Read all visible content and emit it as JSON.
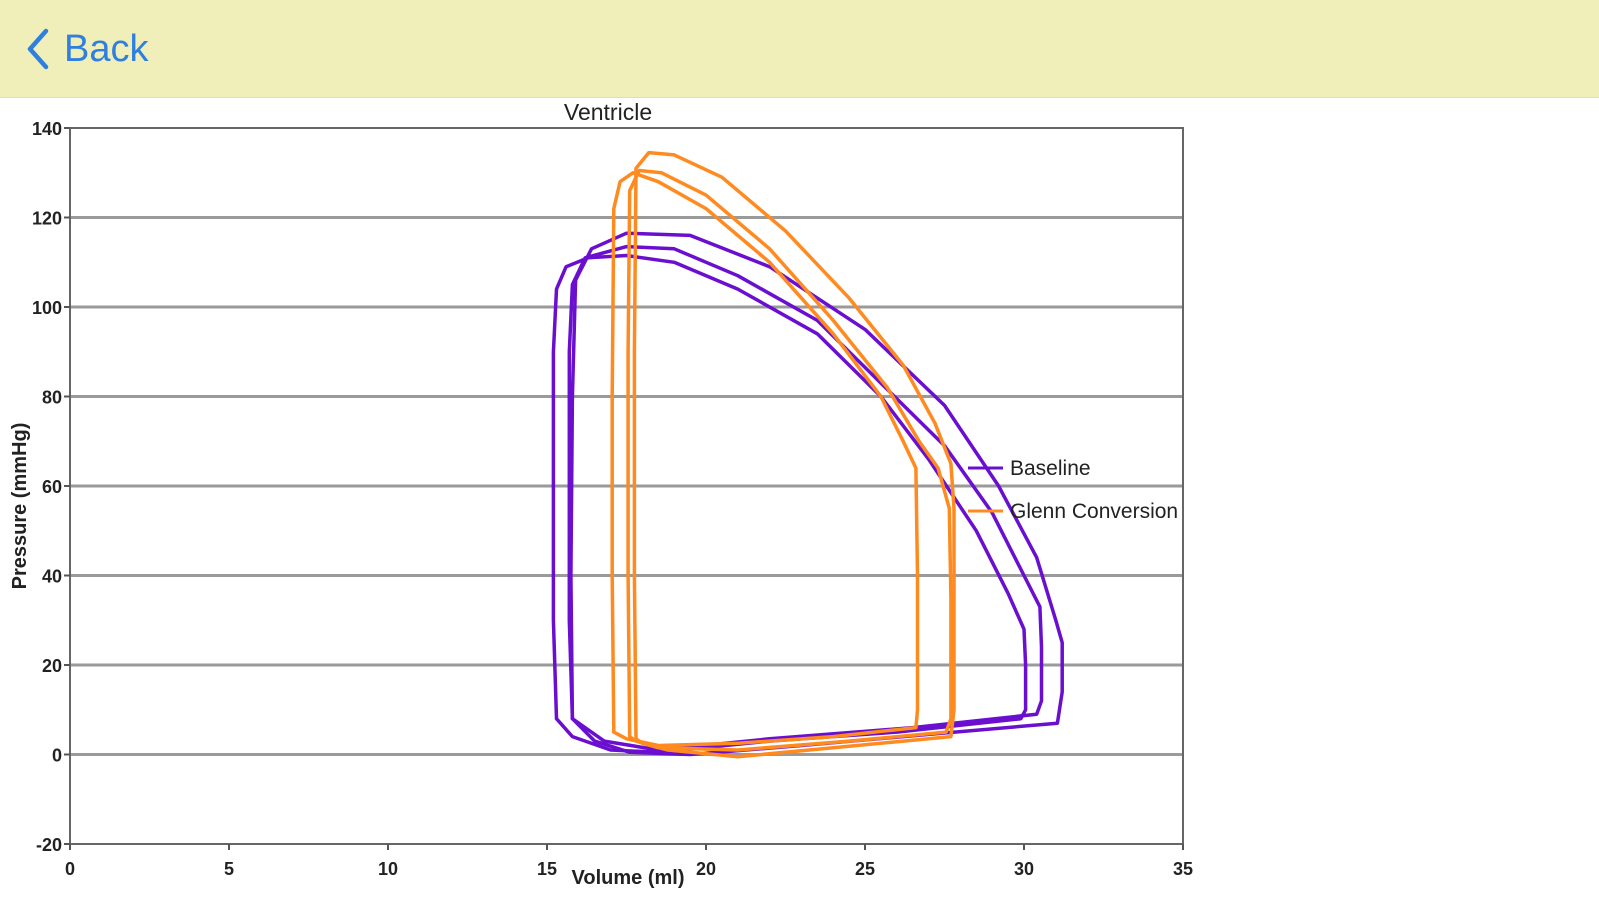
{
  "nav": {
    "back_label": "Back",
    "background": "#f0efb9",
    "accent": "#2f7fe0"
  },
  "chart_data": {
    "type": "line",
    "title": "Ventricle",
    "xlabel": "Volume (ml)",
    "ylabel": "Pressure (mmHg)",
    "xlim": [
      0,
      35
    ],
    "ylim": [
      -20,
      140
    ],
    "x_ticks": [
      "0",
      "5",
      "10",
      "15",
      "20",
      "25",
      "30",
      "35"
    ],
    "y_ticks": [
      "-20",
      "0",
      "20",
      "40",
      "60",
      "80",
      "100",
      "120",
      "140"
    ],
    "grid": "horizontal",
    "legend": "right",
    "series": [
      {
        "name": "Baseline",
        "color": "#6a0fd0",
        "loops": [
          [
            [
              15.3,
              8
            ],
            [
              15.2,
              30
            ],
            [
              15.2,
              60
            ],
            [
              15.2,
              90
            ],
            [
              15.3,
              104
            ],
            [
              15.6,
              109
            ],
            [
              16.3,
              111
            ],
            [
              17.5,
              111.5
            ],
            [
              19,
              110
            ],
            [
              21,
              104
            ],
            [
              23.5,
              94
            ],
            [
              25.5,
              80
            ],
            [
              27,
              66
            ],
            [
              28.5,
              50
            ],
            [
              29.5,
              36
            ],
            [
              30,
              28
            ],
            [
              30.05,
              20
            ],
            [
              30.05,
              10
            ],
            [
              29.9,
              8
            ],
            [
              26,
              5
            ],
            [
              22,
              3
            ],
            [
              18.5,
              0.5
            ],
            [
              17,
              1
            ],
            [
              15.8,
              4
            ],
            [
              15.3,
              8
            ]
          ],
          [
            [
              15.8,
              8
            ],
            [
              15.7,
              30
            ],
            [
              15.7,
              60
            ],
            [
              15.7,
              90
            ],
            [
              15.8,
              105
            ],
            [
              16.2,
              111
            ],
            [
              17.5,
              113.5
            ],
            [
              19,
              113
            ],
            [
              21,
              107
            ],
            [
              23.5,
              97
            ],
            [
              25.5,
              83
            ],
            [
              27.5,
              69
            ],
            [
              29,
              54
            ],
            [
              30,
              40
            ],
            [
              30.5,
              33
            ],
            [
              30.55,
              24
            ],
            [
              30.55,
              12
            ],
            [
              30.4,
              9
            ],
            [
              26.5,
              6
            ],
            [
              22,
              3.5
            ],
            [
              18.5,
              1
            ],
            [
              16.8,
              3
            ],
            [
              15.8,
              8
            ]
          ],
          [
            [
              15.8,
              8
            ],
            [
              15.75,
              40
            ],
            [
              15.8,
              80
            ],
            [
              15.9,
              106
            ],
            [
              16.4,
              113
            ],
            [
              17.5,
              116.5
            ],
            [
              19.5,
              116
            ],
            [
              22,
              109
            ],
            [
              25,
              95
            ],
            [
              27.5,
              78
            ],
            [
              29.2,
              60
            ],
            [
              30.4,
              44
            ],
            [
              31,
              30
            ],
            [
              31.2,
              25
            ],
            [
              31.2,
              14
            ],
            [
              31.05,
              7
            ],
            [
              27,
              4.5
            ],
            [
              23,
              2
            ],
            [
              19.5,
              0
            ],
            [
              17.6,
              0.5
            ],
            [
              16.5,
              3
            ],
            [
              15.8,
              8
            ]
          ]
        ]
      },
      {
        "name": "Glenn Conversion",
        "color": "#ff8a1f",
        "loops": [
          [
            [
              17.1,
              5
            ],
            [
              17.05,
              40
            ],
            [
              17.05,
              80
            ],
            [
              17.1,
              122
            ],
            [
              17.3,
              128
            ],
            [
              17.7,
              130
            ],
            [
              18.5,
              128
            ],
            [
              20,
              122
            ],
            [
              22,
              110
            ],
            [
              24,
              94
            ],
            [
              25.5,
              80
            ],
            [
              26.2,
              70
            ],
            [
              26.6,
              64
            ],
            [
              26.65,
              40
            ],
            [
              26.65,
              10
            ],
            [
              26.6,
              6
            ],
            [
              24,
              4
            ],
            [
              21,
              2.5
            ],
            [
              18.5,
              2
            ],
            [
              17.5,
              3.5
            ],
            [
              17.1,
              5
            ]
          ],
          [
            [
              17.6,
              4
            ],
            [
              17.55,
              40
            ],
            [
              17.55,
              90
            ],
            [
              17.6,
              126
            ],
            [
              17.9,
              130.5
            ],
            [
              18.6,
              130
            ],
            [
              20,
              125
            ],
            [
              22,
              113
            ],
            [
              24,
              97
            ],
            [
              25.7,
              82
            ],
            [
              26.7,
              70
            ],
            [
              27.3,
              64
            ],
            [
              27.65,
              55
            ],
            [
              27.7,
              35
            ],
            [
              27.7,
              8
            ],
            [
              27.55,
              5
            ],
            [
              24.5,
              3
            ],
            [
              21,
              1
            ],
            [
              18.5,
              1.5
            ],
            [
              17.8,
              3
            ],
            [
              17.6,
              4
            ]
          ],
          [
            [
              17.8,
              3.5
            ],
            [
              17.75,
              40
            ],
            [
              17.75,
              90
            ],
            [
              17.8,
              131
            ],
            [
              18.2,
              134.5
            ],
            [
              19,
              134
            ],
            [
              20.5,
              129
            ],
            [
              22.5,
              117
            ],
            [
              24.5,
              102
            ],
            [
              26.2,
              87
            ],
            [
              27.2,
              74
            ],
            [
              27.7,
              65
            ],
            [
              27.8,
              55
            ],
            [
              27.8,
              10
            ],
            [
              27.7,
              4
            ],
            [
              24,
              1.5
            ],
            [
              21,
              -0.5
            ],
            [
              18.8,
              1
            ],
            [
              18,
              2.5
            ],
            [
              17.8,
              3.5
            ]
          ]
        ]
      }
    ]
  }
}
